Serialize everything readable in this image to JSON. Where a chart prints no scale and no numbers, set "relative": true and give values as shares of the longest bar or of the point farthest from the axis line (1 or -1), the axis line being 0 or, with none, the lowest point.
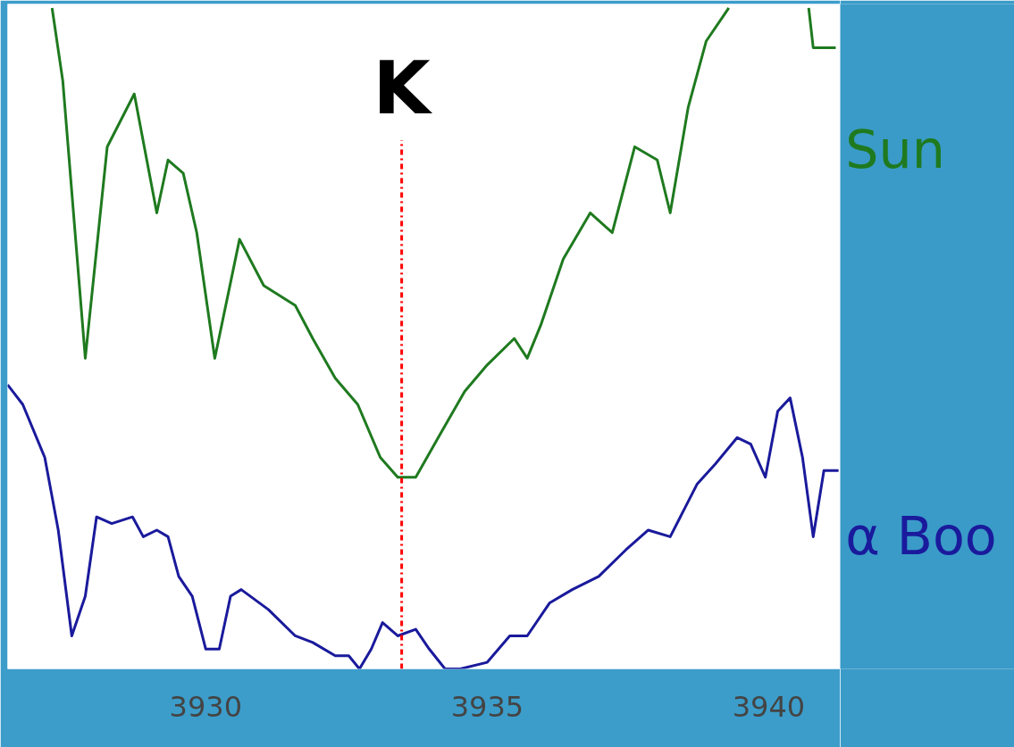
{
  "chart_data": {
    "type": "line",
    "relative": true,
    "xlim": [
      3926.48,
      3941.27
    ],
    "xticks": [
      3930,
      3935,
      3940
    ],
    "grid": false,
    "marker": "none",
    "line_style": "solid",
    "ref_lines": [
      {
        "axis": "x",
        "value": 3933.48,
        "label": "K",
        "color": "#ff0000",
        "line_style": "dashdot"
      }
    ],
    "series": [
      {
        "name": "Sun",
        "color": "#1f7a1f",
        "x": [
          3927.27,
          3927.46,
          3927.86,
          3928.25,
          3928.73,
          3929.13,
          3929.33,
          3929.6,
          3929.84,
          3930.16,
          3930.6,
          3931.03,
          3931.59,
          3931.9,
          3932.3,
          3932.7,
          3933.1,
          3933.41,
          3933.73,
          3934.13,
          3934.6,
          3935.0,
          3935.48,
          3935.71,
          3935.95,
          3936.35,
          3936.83,
          3937.22,
          3937.62,
          3938.02,
          3938.25,
          3938.57,
          3938.89,
          3939.21,
          3939.29,
          3940.0,
          3940.71,
          3940.79,
          3941.19
        ],
        "values": [
          1.0,
          0.89,
          0.47,
          0.79,
          0.87,
          0.69,
          0.77,
          0.75,
          0.66,
          0.47,
          0.65,
          0.58,
          0.55,
          0.5,
          0.44,
          0.4,
          0.32,
          0.29,
          0.29,
          0.35,
          0.42,
          0.46,
          0.5,
          0.47,
          0.52,
          0.62,
          0.69,
          0.66,
          0.79,
          0.77,
          0.69,
          0.85,
          0.95,
          0.99,
          1.0,
          null,
          1.0,
          0.94,
          0.94
        ]
      },
      {
        "name": "α Boo",
        "color": "#1a1a9c",
        "x": [
          3926.48,
          3926.75,
          3927.14,
          3927.38,
          3927.62,
          3927.86,
          3928.06,
          3928.33,
          3928.7,
          3928.89,
          3929.13,
          3929.33,
          3929.52,
          3929.76,
          3930.0,
          3930.24,
          3930.44,
          3930.63,
          3931.11,
          3931.59,
          3931.9,
          3932.3,
          3932.54,
          3932.73,
          3932.94,
          3933.14,
          3933.41,
          3933.73,
          3933.97,
          3934.25,
          3934.52,
          3935.0,
          3935.4,
          3935.71,
          3936.11,
          3936.51,
          3936.98,
          3937.46,
          3937.86,
          3938.25,
          3938.73,
          3939.05,
          3939.44,
          3939.68,
          3939.94,
          3940.16,
          3940.38,
          3940.6,
          3940.79,
          3940.98,
          3941.24
        ],
        "values": [
          0.43,
          0.4,
          0.32,
          0.21,
          0.05,
          0.11,
          0.23,
          0.22,
          0.23,
          0.2,
          0.21,
          0.2,
          0.14,
          0.11,
          0.03,
          0.03,
          0.11,
          0.12,
          0.09,
          0.05,
          0.04,
          0.02,
          0.02,
          0.0,
          0.03,
          0.07,
          0.05,
          0.06,
          0.03,
          0.0,
          0.0,
          0.01,
          0.05,
          0.05,
          0.1,
          0.12,
          0.14,
          0.18,
          0.21,
          0.2,
          0.28,
          0.31,
          0.35,
          0.34,
          0.29,
          0.39,
          0.41,
          0.32,
          0.2,
          0.3,
          0.3
        ]
      }
    ]
  }
}
